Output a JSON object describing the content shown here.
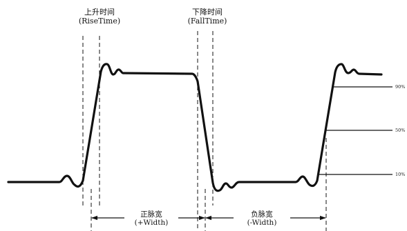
{
  "labels": {
    "rise_time": {
      "zh": "上升时间",
      "en": "(RiseTime)"
    },
    "fall_time": {
      "zh": "下降时间",
      "en": "(FallTime)"
    },
    "positive_width": {
      "zh": "正脉宽",
      "en": "(+Width)"
    },
    "negative_width": {
      "zh": "负脉宽",
      "en": "(-Width)"
    }
  },
  "levels": {
    "p90": "90%",
    "p50": "50%",
    "p10": "10%"
  },
  "colors": {
    "stroke": "#111111",
    "background": "#ffffff"
  }
}
